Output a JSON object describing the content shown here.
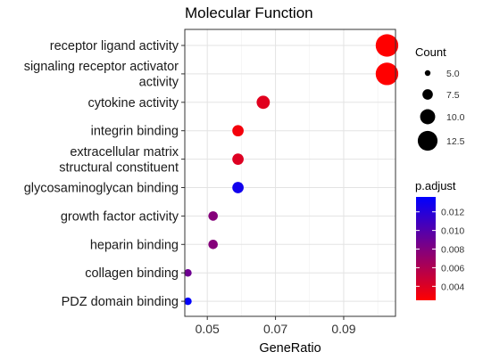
{
  "chart_data": {
    "type": "scatter",
    "title": "Molecular Function",
    "xlabel": "GeneRatio",
    "ylabel": "",
    "xlim": [
      0.0434,
      0.1052
    ],
    "xticks": [
      0.05,
      0.07,
      0.09
    ],
    "xtick_labels": [
      "0.05",
      "0.07",
      "0.09"
    ],
    "categories": [
      [
        "receptor ligand activity"
      ],
      [
        "signaling receptor activator",
        "activity"
      ],
      [
        "cytokine activity"
      ],
      [
        "integrin binding"
      ],
      [
        "extracellular matrix",
        "structural constituent"
      ],
      [
        "glycosaminoglycan binding"
      ],
      [
        "growth factor activity"
      ],
      [
        "heparin binding"
      ],
      [
        "collagen binding"
      ],
      [
        "PDZ domain binding"
      ]
    ],
    "points": [
      {
        "x": 0.1027,
        "count": 14,
        "p_adjust": 0.0025
      },
      {
        "x": 0.1027,
        "count": 14,
        "p_adjust": 0.0025
      },
      {
        "x": 0.0664,
        "count": 9,
        "p_adjust": 0.0038
      },
      {
        "x": 0.059,
        "count": 8,
        "p_adjust": 0.003
      },
      {
        "x": 0.059,
        "count": 8,
        "p_adjust": 0.004
      },
      {
        "x": 0.059,
        "count": 8,
        "p_adjust": 0.0128
      },
      {
        "x": 0.0517,
        "count": 7,
        "p_adjust": 0.0078
      },
      {
        "x": 0.0517,
        "count": 7,
        "p_adjust": 0.0078
      },
      {
        "x": 0.0443,
        "count": 6,
        "p_adjust": 0.0088
      },
      {
        "x": 0.0443,
        "count": 6,
        "p_adjust": 0.0135
      }
    ],
    "grid": true,
    "legend_placement": "right",
    "size_legend": {
      "title": "Count",
      "values": [
        5.0,
        7.5,
        10.0,
        12.5
      ],
      "labels": [
        "5.0",
        "7.5",
        "10.0",
        "12.5"
      ]
    },
    "color_legend": {
      "title": "p.adjust",
      "min": 0.0025,
      "max": 0.0136,
      "ticks": [
        0.004,
        0.006,
        0.008,
        0.01,
        0.012
      ],
      "labels": [
        "0.004",
        "0.006",
        "0.008",
        "0.010",
        "0.012"
      ],
      "low_color": "#ff0000",
      "high_color": "#0000ff"
    }
  }
}
